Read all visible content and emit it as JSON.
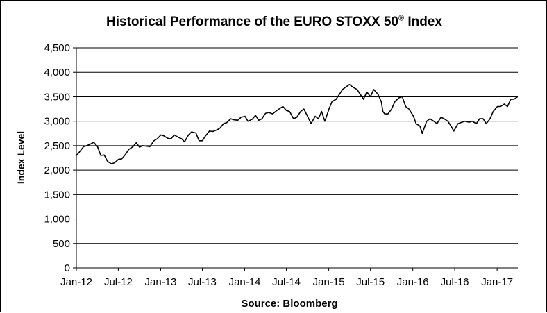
{
  "chart_data": {
    "type": "line",
    "title_main": "Historical  Performance  of the EURO STOXX 50",
    "title_sup": "®",
    "title_suffix": " Index",
    "ylabel": "Index Level",
    "xlabel": "Source: Bloomberg",
    "ylim": [
      0,
      4500
    ],
    "yticks": [
      0,
      500,
      1000,
      1500,
      2000,
      2500,
      3000,
      3500,
      4000,
      4500
    ],
    "ytick_labels": [
      "0",
      "500",
      "1,000",
      "1,500",
      "2,000",
      "2,500",
      "3,000",
      "3,500",
      "4,000",
      "4,500"
    ],
    "xlim": [
      "2012-01-01",
      "2017-04-01"
    ],
    "xtick_dates": [
      "2012-01-01",
      "2012-07-01",
      "2013-01-01",
      "2013-07-01",
      "2014-01-01",
      "2014-07-01",
      "2015-01-01",
      "2015-07-01",
      "2016-01-01",
      "2016-07-01",
      "2017-01-01"
    ],
    "xtick_labels": [
      "Jan-12",
      "Jul-12",
      "Jan-13",
      "Jul-13",
      "Jan-14",
      "Jul-14",
      "Jan-15",
      "Jul-15",
      "Jan-16",
      "Jul-16",
      "Jan-17"
    ],
    "grid": "horizontal",
    "line_color": "#000000",
    "series": [
      {
        "x": [
          "2012-01-02",
          "2012-01-16",
          "2012-02-01",
          "2012-02-15",
          "2012-03-01",
          "2012-03-16",
          "2012-04-02",
          "2012-04-16",
          "2012-05-01",
          "2012-05-15",
          "2012-06-01",
          "2012-06-15",
          "2012-07-02",
          "2012-07-16",
          "2012-08-01",
          "2012-08-15",
          "2012-09-03",
          "2012-09-17",
          "2012-10-01",
          "2012-10-15",
          "2012-11-01",
          "2012-11-15",
          "2012-12-03",
          "2012-12-17",
          "2013-01-02",
          "2013-01-15",
          "2013-02-01",
          "2013-02-15",
          "2013-03-01",
          "2013-03-15",
          "2013-04-02",
          "2013-04-15",
          "2013-05-02",
          "2013-05-15",
          "2013-06-03",
          "2013-06-17",
          "2013-07-01",
          "2013-07-15",
          "2013-08-01",
          "2013-08-15",
          "2013-09-02",
          "2013-09-16",
          "2013-10-01",
          "2013-10-15",
          "2013-11-01",
          "2013-11-15",
          "2013-12-02",
          "2013-12-16",
          "2014-01-02",
          "2014-01-15",
          "2014-02-03",
          "2014-02-17",
          "2014-03-03",
          "2014-03-17",
          "2014-04-01",
          "2014-04-15",
          "2014-05-02",
          "2014-05-15",
          "2014-06-02",
          "2014-06-16",
          "2014-07-01",
          "2014-07-15",
          "2014-08-01",
          "2014-08-15",
          "2014-09-01",
          "2014-09-15",
          "2014-10-01",
          "2014-10-16",
          "2014-11-03",
          "2014-11-17",
          "2014-12-01",
          "2014-12-15",
          "2015-01-02",
          "2015-01-15",
          "2015-02-02",
          "2015-02-16",
          "2015-03-02",
          "2015-03-16",
          "2015-04-01",
          "2015-04-15",
          "2015-05-04",
          "2015-05-15",
          "2015-06-01",
          "2015-06-15",
          "2015-07-01",
          "2015-07-15",
          "2015-08-03",
          "2015-08-17",
          "2015-08-24",
          "2015-09-01",
          "2015-09-15",
          "2015-10-01",
          "2015-10-15",
          "2015-11-02",
          "2015-11-16",
          "2015-12-01",
          "2015-12-15",
          "2016-01-04",
          "2016-01-15",
          "2016-02-01",
          "2016-02-11",
          "2016-03-01",
          "2016-03-15",
          "2016-04-01",
          "2016-04-15",
          "2016-05-02",
          "2016-05-16",
          "2016-06-01",
          "2016-06-15",
          "2016-06-27",
          "2016-07-15",
          "2016-08-01",
          "2016-08-15",
          "2016-09-01",
          "2016-09-15",
          "2016-10-03",
          "2016-10-17",
          "2016-11-01",
          "2016-11-15",
          "2016-12-01",
          "2016-12-15",
          "2017-01-02",
          "2017-01-16",
          "2017-02-01",
          "2017-02-15",
          "2017-03-01",
          "2017-03-15",
          "2017-03-31"
        ],
        "values": [
          2300,
          2380,
          2480,
          2500,
          2530,
          2570,
          2480,
          2300,
          2310,
          2180,
          2130,
          2150,
          2220,
          2230,
          2320,
          2420,
          2480,
          2560,
          2470,
          2500,
          2490,
          2480,
          2600,
          2640,
          2720,
          2700,
          2650,
          2640,
          2720,
          2680,
          2640,
          2580,
          2720,
          2780,
          2760,
          2600,
          2600,
          2700,
          2800,
          2790,
          2820,
          2860,
          2950,
          2970,
          3050,
          3030,
          3020,
          3080,
          3100,
          3000,
          3040,
          3120,
          3020,
          3050,
          3160,
          3180,
          3150,
          3200,
          3260,
          3300,
          3220,
          3200,
          3050,
          3080,
          3200,
          3250,
          3100,
          2950,
          3100,
          3050,
          3200,
          3000,
          3250,
          3400,
          3450,
          3550,
          3650,
          3700,
          3750,
          3700,
          3650,
          3570,
          3450,
          3600,
          3500,
          3650,
          3550,
          3400,
          3200,
          3150,
          3150,
          3250,
          3400,
          3480,
          3500,
          3300,
          3250,
          3100,
          2950,
          2900,
          2750,
          3000,
          3050,
          3000,
          2950,
          3080,
          3050,
          3000,
          2900,
          2800,
          2950,
          2980,
          3000,
          2980,
          3000,
          2950,
          3050,
          3050,
          2950,
          3050,
          3200,
          3300,
          3300,
          3350,
          3300,
          3450,
          3450,
          3500
        ]
      }
    ]
  }
}
